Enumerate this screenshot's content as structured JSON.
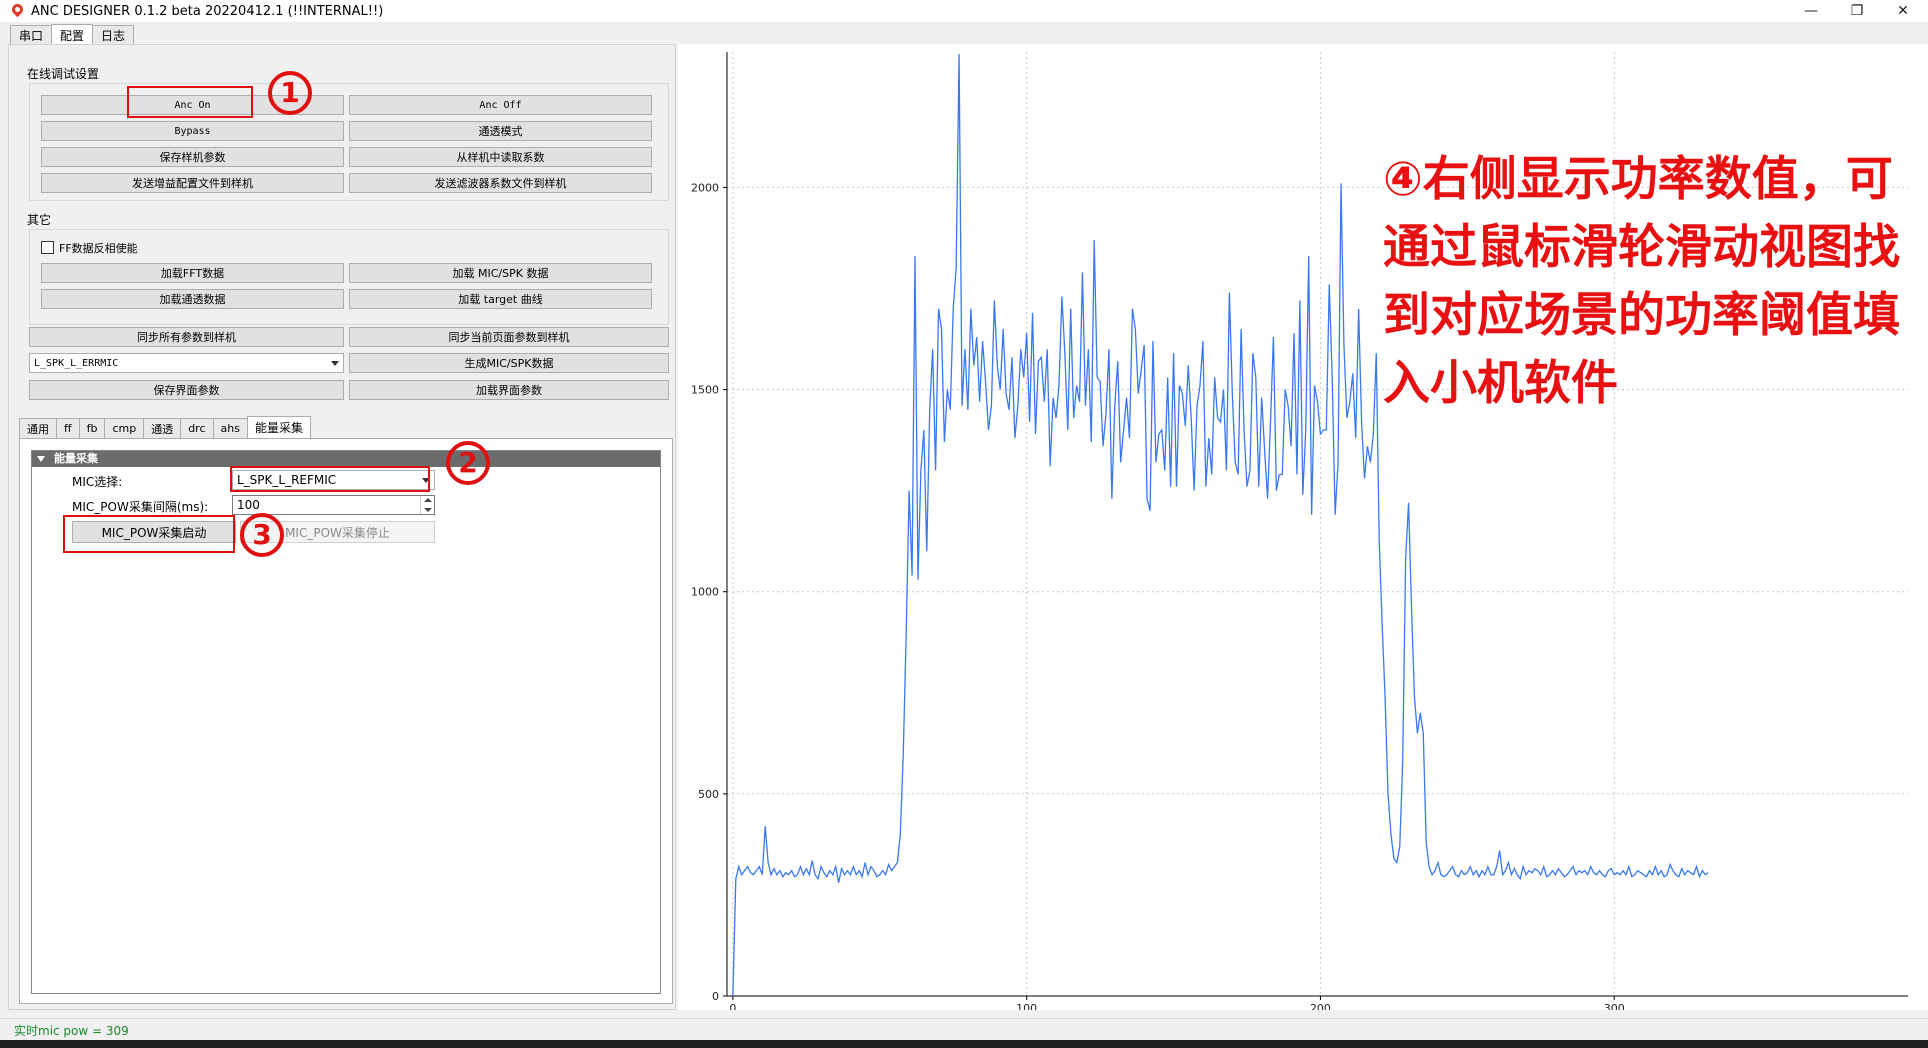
{
  "window": {
    "title": "ANC DESIGNER 0.1.2 beta 20220412.1 (!!INTERNAL!!)",
    "controls": {
      "minimize": "—",
      "maximize": "❐",
      "close": "✕"
    }
  },
  "main_tabs": [
    {
      "label": "串口"
    },
    {
      "label": "配置"
    },
    {
      "label": "日志"
    }
  ],
  "online_debug": {
    "title": "在线调试设置",
    "buttons": {
      "anc_on": "Anc On",
      "anc_off": "Anc Off",
      "bypass": "Bypass",
      "transparent_mode": "通透模式",
      "save_params": "保存样机参数",
      "read_params": "从样机中读取系数",
      "send_gain_config": "发送增益配置文件到样机",
      "send_filter_coeffs": "发送滤波器系数文件到样机"
    }
  },
  "other": {
    "title": "其它",
    "ff_invert_label": "FF数据反相使能",
    "ff_invert_checked": false,
    "buttons": {
      "load_fft": "加载FFT数据",
      "load_mic_spk": "加载 MIC/SPK 数据",
      "load_transparent": "加载通透数据",
      "load_target": "加载 target 曲线"
    }
  },
  "sync": {
    "sync_all": "同步所有参数到样机",
    "sync_page": "同步当前页面参数到样机",
    "combo_value": "L_SPK_L_ERRMIC",
    "gen_mic_spk": "生成MIC/SPK数据",
    "save_ui": "保存界面参数",
    "load_ui": "加载界面参数"
  },
  "sub_tabs": [
    {
      "label": "通用"
    },
    {
      "label": "ff"
    },
    {
      "label": "fb"
    },
    {
      "label": "cmp"
    },
    {
      "label": "通透"
    },
    {
      "label": "drc"
    },
    {
      "label": "ahs"
    },
    {
      "label": "能量采集"
    }
  ],
  "energy": {
    "header": "能量采集",
    "mic_select_label": "MIC选择:",
    "mic_select_value": "L_SPK_L_REFMIC",
    "interval_label": "MIC_POW采集间隔(ms):",
    "interval_value": "100",
    "start_button": "MIC_POW采集启动",
    "stop_button": "MIC_POW采集停止"
  },
  "annotations": {
    "step1": "1",
    "step2": "2",
    "step3": "3",
    "step4_text": "④右侧显示功率数值，可通过鼠标滑轮滑动视图找到对应场景的功率阈值填入小机软件",
    "color": "#e01010"
  },
  "status": {
    "text": "实时mic pow = 309"
  },
  "chart_data": {
    "type": "line",
    "line_color": "#3a78f0",
    "grid": true,
    "xlim": [
      -2,
      400
    ],
    "ylim": [
      0,
      2335
    ],
    "x_ticks": [
      0,
      100,
      200,
      300
    ],
    "y_ticks": [
      0,
      500,
      1000,
      1500,
      2000
    ],
    "x_tick_labels": [
      "0",
      "100",
      "200",
      "300"
    ],
    "y_tick_labels": [
      "0",
      "500",
      "1000",
      "1500",
      "2000"
    ],
    "series": [
      {
        "x_start": 0,
        "x_step": 1,
        "values": [
          0,
          290,
          320,
          300,
          310,
          320,
          305,
          300,
          310,
          320,
          300,
          420,
          330,
          300,
          315,
          300,
          310,
          295,
          305,
          300,
          310,
          295,
          300,
          320,
          300,
          315,
          300,
          335,
          300,
          290,
          320,
          305,
          295,
          310,
          300,
          320,
          280,
          315,
          300,
          310,
          300,
          320,
          300,
          310,
          295,
          330,
          300,
          320,
          310,
          295,
          300,
          310,
          300,
          325,
          310,
          320,
          330,
          400,
          600,
          900,
          1250,
          1040,
          1830,
          1030,
          1300,
          1400,
          1100,
          1450,
          1600,
          1300,
          1700,
          1650,
          1370,
          1500,
          1450,
          1700,
          1800,
          2330,
          1460,
          1600,
          1450,
          1700,
          1560,
          1630,
          1470,
          1620,
          1520,
          1400,
          1460,
          1720,
          1560,
          1500,
          1650,
          1490,
          1450,
          1580,
          1380,
          1460,
          1600,
          1530,
          1640,
          1420,
          1690,
          1390,
          1570,
          1580,
          1470,
          1600,
          1310,
          1480,
          1430,
          1510,
          1730,
          1590,
          1400,
          1700,
          1430,
          1510,
          1470,
          1790,
          1460,
          1600,
          1370,
          1870,
          1530,
          1520,
          1360,
          1440,
          1600,
          1230,
          1460,
          1570,
          1320,
          1400,
          1480,
          1380,
          1700,
          1650,
          1490,
          1550,
          1610,
          1230,
          1200,
          1620,
          1320,
          1390,
          1400,
          1300,
          1530,
          1260,
          1590,
          1260,
          1510,
          1490,
          1410,
          1560,
          1430,
          1250,
          1460,
          1510,
          1620,
          1260,
          1380,
          1290,
          1530,
          1430,
          1420,
          1500,
          1300,
          1740,
          1490,
          1320,
          1290,
          1650,
          1400,
          1260,
          1300,
          1590,
          1530,
          1260,
          1480,
          1350,
          1230,
          1420,
          1630,
          1250,
          1290,
          1290,
          1500,
          1460,
          1360,
          1640,
          1290,
          1720,
          1240,
          1400,
          1830,
          1190,
          1510,
          1470,
          1390,
          1400,
          1400,
          1760,
          1530,
          1190,
          1320,
          2010,
          1610,
          1430,
          1470,
          1540,
          1380,
          1700,
          1420,
          1280,
          1360,
          1320,
          1390,
          1590,
          1130,
          920,
          740,
          500,
          400,
          340,
          330,
          370,
          580,
          1080,
          1220,
          960,
          740,
          650,
          700,
          650,
          380,
          320,
          300,
          310,
          330,
          300,
          295,
          300,
          310,
          320,
          300,
          295,
          310,
          300,
          305,
          320,
          300,
          310,
          295,
          310,
          300,
          320,
          300,
          300,
          320,
          360,
          300,
          310,
          330,
          300,
          315,
          300,
          290,
          320,
          300,
          310,
          305,
          315,
          310,
          300,
          320,
          295,
          300,
          310,
          300,
          315,
          305,
          295,
          300,
          310,
          320,
          300,
          310,
          305,
          310,
          300,
          320,
          305,
          300,
          310,
          300,
          295,
          310,
          315,
          300,
          305,
          300,
          310,
          300,
          320,
          295,
          300,
          310,
          305,
          300,
          295,
          310,
          300,
          320,
          300,
          310,
          295,
          300,
          325,
          310,
          300,
          295,
          315,
          300,
          310,
          305,
          300,
          320,
          295,
          310,
          300,
          305
        ]
      }
    ]
  }
}
